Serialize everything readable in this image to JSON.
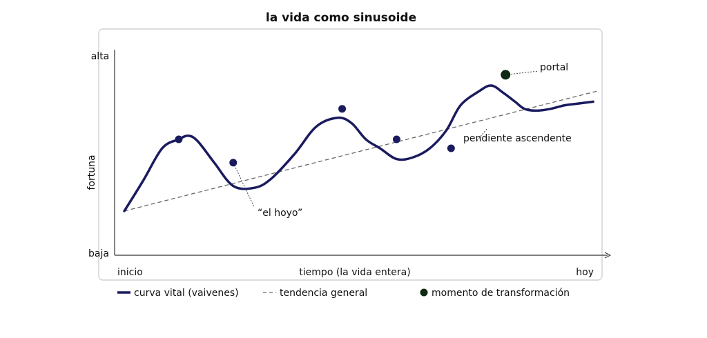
{
  "chart_data": {
    "type": "line",
    "title": "la vida como sinusoide",
    "xlabel": "tiempo (la vida entera)",
    "ylabel": "fortuna",
    "x_tick_labels": [
      "inicio",
      "hoy"
    ],
    "y_tick_labels": [
      "baja",
      "alta"
    ],
    "xlim": [
      0,
      100
    ],
    "ylim": [
      0,
      100
    ],
    "grid": false,
    "legend_position": "bottom",
    "series": [
      {
        "name": "curva vital (vaivenes)",
        "style": "solid",
        "x": [
          0,
          4,
          8,
          11.5,
          13.5,
          15.5,
          19,
          23,
          27.5,
          31,
          36,
          40.5,
          45,
          48,
          51,
          54,
          57.5,
          61,
          64.5,
          68,
          71,
          75,
          77.5,
          80,
          82.5,
          84.5,
          87,
          90,
          93,
          96,
          99
        ],
        "y": [
          15,
          32,
          50,
          55,
          57,
          54,
          42,
          29,
          28,
          33,
          47,
          62,
          67,
          64,
          55,
          50,
          44,
          45,
          50,
          60,
          74,
          82,
          85,
          81,
          76,
          72,
          71,
          72,
          74,
          75,
          76
        ]
      },
      {
        "name": "tendencia general",
        "style": "dashed",
        "x": [
          0,
          100
        ],
        "y": [
          15,
          82
        ]
      }
    ],
    "points": {
      "name": "momento de transformación",
      "x": [
        11.5,
        23,
        46,
        57.5,
        69,
        80.5
      ],
      "y": [
        55,
        42,
        72,
        55,
        50,
        91
      ],
      "highlight_index": 5
    },
    "annotations": [
      {
        "text": "“el hoyo”",
        "x": 23,
        "y": 42
      },
      {
        "text": "pendiente ascendente",
        "x": 71,
        "y": 62
      },
      {
        "text": "portal",
        "x": 80.5,
        "y": 91
      }
    ]
  },
  "legend": {
    "items": [
      "curva vital (vaivenes)",
      "tendencia general",
      "momento de transformación"
    ]
  },
  "colors": {
    "curve": "#1a1b5e",
    "trend": "#666666",
    "point": "#1a1b5e",
    "highlight_point": "#0f2a12",
    "axis": "#333333"
  }
}
